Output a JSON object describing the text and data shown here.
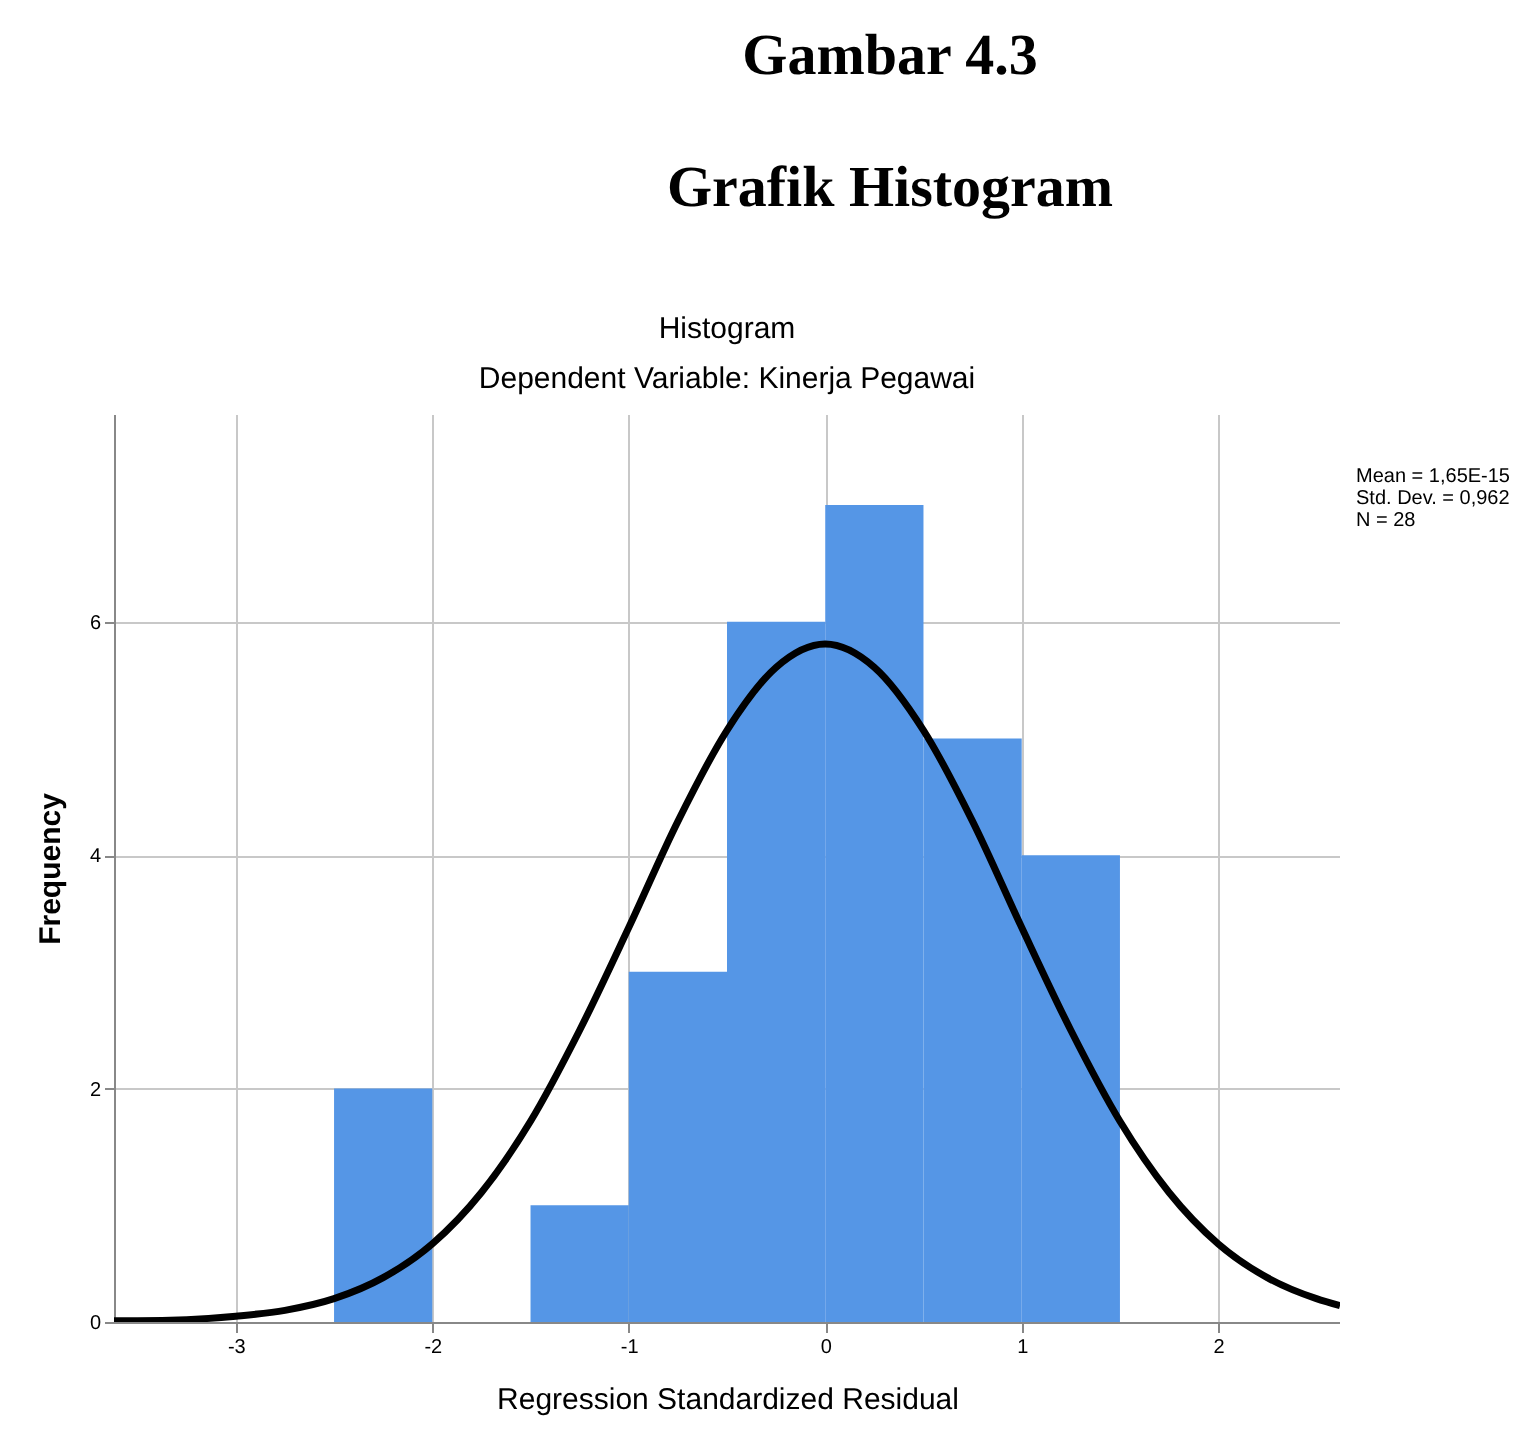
{
  "chart_data": {
    "type": "histogram",
    "title": "Histogram",
    "subtitle": "Dependent Variable: Kinerja Pegawai",
    "xlabel": "Regression Standardized Residual",
    "ylabel": "Frequency",
    "annotations": [
      "Gambar 4.3",
      "Grafik Histogram",
      "Mean = 1,65E-15",
      "Std. Dev. = 0,962",
      "N = 28"
    ],
    "bins": [
      -2.5,
      -2,
      -1.5,
      -1,
      -0.5,
      0,
      0.5,
      1,
      1.5
    ],
    "series": [
      {
        "color": "#5596e6",
        "values": [
          2,
          0,
          1,
          3,
          6,
          7,
          5,
          4
        ]
      },
      {
        "type": "line",
        "color": "#000000",
        "x": [
          -3.62,
          -3.5,
          -3.25,
          -3,
          -2.75,
          -2.5,
          -2.25,
          -2,
          -1.75,
          -1.5,
          -1.25,
          -1,
          -0.75,
          -0.5,
          -0.25,
          0,
          0.25,
          0.5,
          0.75,
          1,
          1.25,
          1.5,
          1.75,
          2,
          2.25,
          2.5,
          2.62
        ],
        "values": [
          0.01,
          0.01,
          0.02,
          0.05,
          0.1,
          0.2,
          0.38,
          0.67,
          1.11,
          1.72,
          2.5,
          3.38,
          4.29,
          5.07,
          5.61,
          5.81,
          5.61,
          5.07,
          4.29,
          3.38,
          2.5,
          1.72,
          1.11,
          0.67,
          0.38,
          0.2,
          0.14
        ]
      }
    ],
    "xlim": [
      -3.62,
      2.62
    ],
    "ylim": [
      0,
      7.78
    ],
    "xticks": [
      -3,
      -2,
      -1,
      0,
      1,
      2
    ],
    "yticks": [
      0,
      2,
      4,
      6
    ],
    "grid": true
  }
}
